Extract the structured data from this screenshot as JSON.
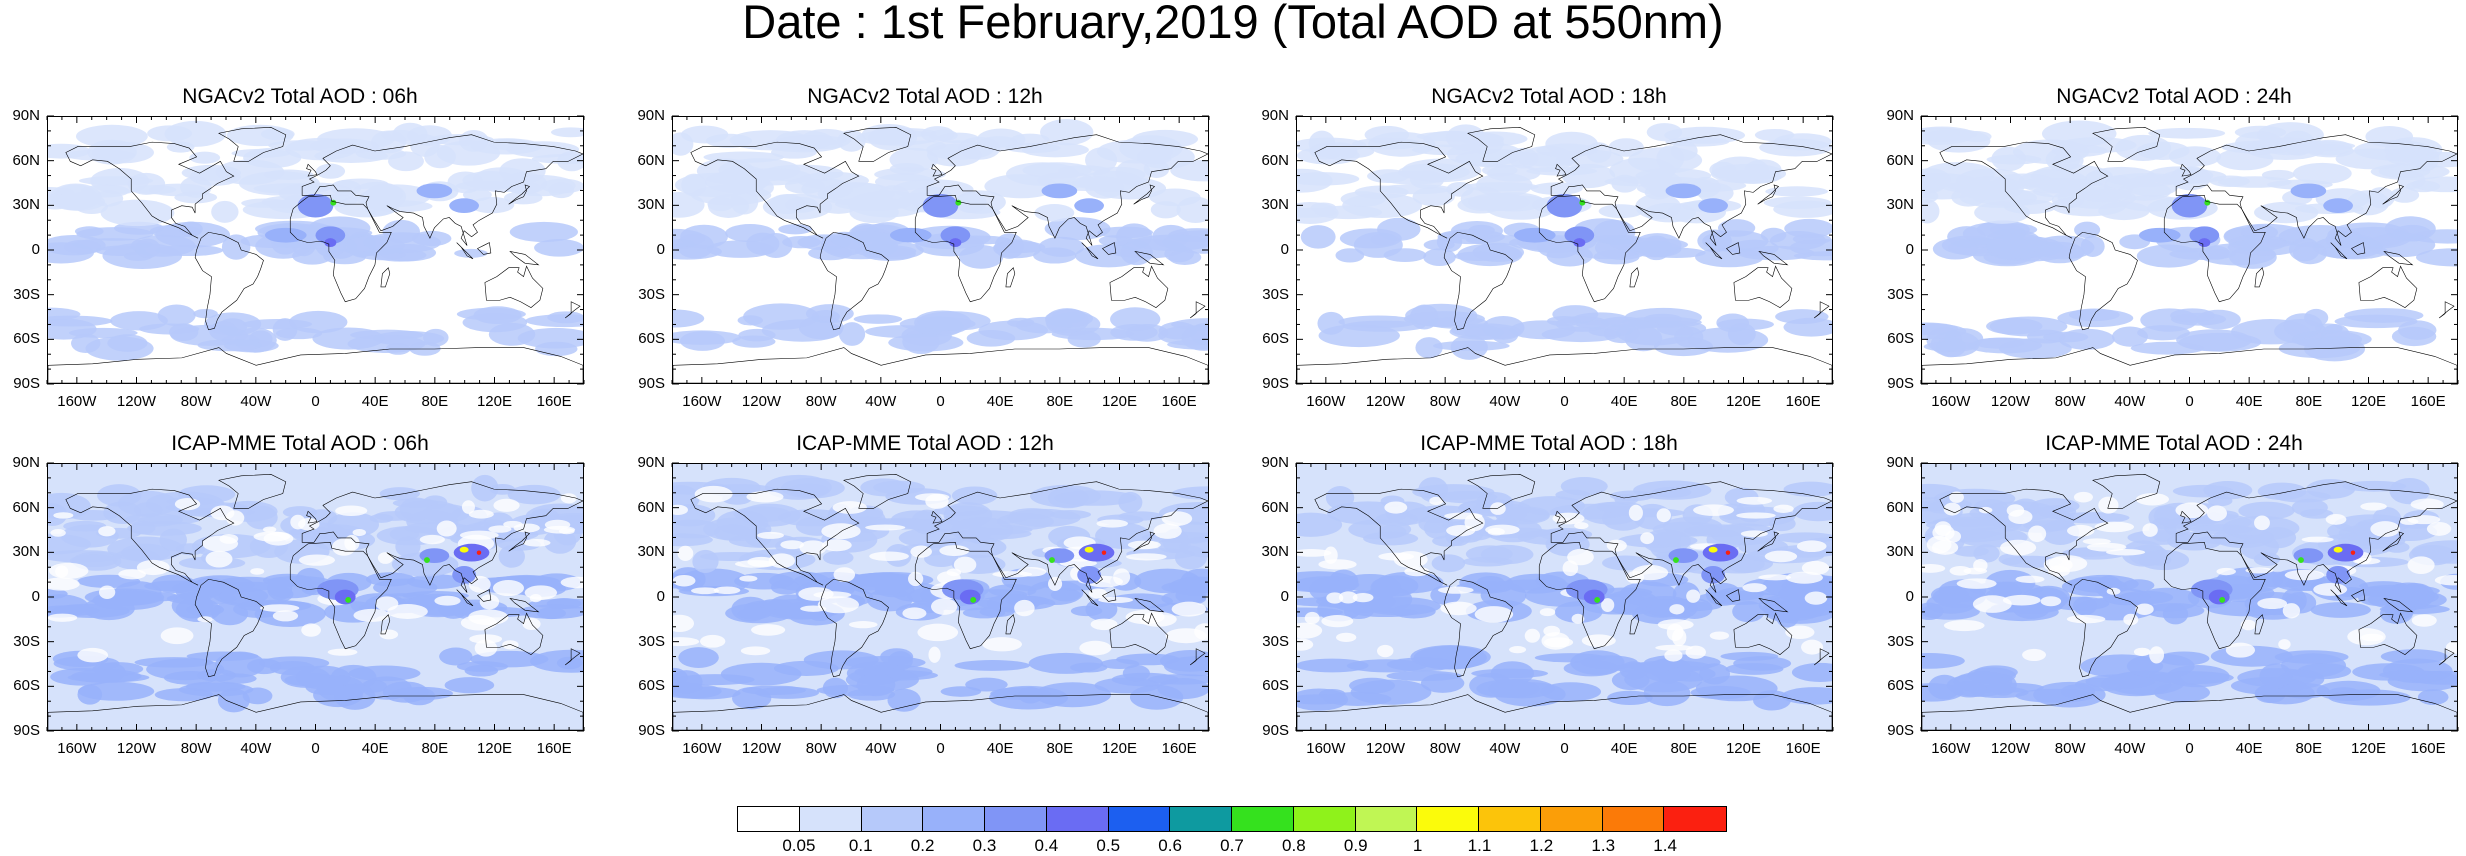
{
  "title": "Date : 1st February,2019 (Total AOD at 550nm)",
  "panels": [
    {
      "title": "NGACv2 Total AOD : 06h",
      "model": "NGACv2",
      "hour": "06h"
    },
    {
      "title": "NGACv2 Total AOD : 12h",
      "model": "NGACv2",
      "hour": "12h"
    },
    {
      "title": "NGACv2 Total AOD : 18h",
      "model": "NGACv2",
      "hour": "18h"
    },
    {
      "title": "NGACv2 Total AOD : 24h",
      "model": "NGACv2",
      "hour": "24h"
    },
    {
      "title": "ICAP-MME Total AOD : 06h",
      "model": "ICAP-MME",
      "hour": "06h"
    },
    {
      "title": "ICAP-MME Total AOD : 12h",
      "model": "ICAP-MME",
      "hour": "12h"
    },
    {
      "title": "ICAP-MME Total AOD : 18h",
      "model": "ICAP-MME",
      "hour": "18h"
    },
    {
      "title": "ICAP-MME Total AOD : 24h",
      "model": "ICAP-MME",
      "hour": "24h"
    }
  ],
  "lat_labels": [
    "90N",
    "60N",
    "30N",
    "0",
    "30S",
    "60S",
    "90S"
  ],
  "lon_labels": [
    "160W",
    "120W",
    "80W",
    "40W",
    "0",
    "40E",
    "80E",
    "120E",
    "160E"
  ],
  "colorbar": {
    "labels": [
      "0.05",
      "0.1",
      "0.2",
      "0.3",
      "0.4",
      "0.5",
      "0.6",
      "0.7",
      "0.8",
      "0.9",
      "1",
      "1.1",
      "1.2",
      "1.3",
      "1.4"
    ],
    "colors": [
      "#ffffff",
      "#d6e2fb",
      "#b6c9fa",
      "#98b1fa",
      "#8095f6",
      "#6a6cf3",
      "#1c5ff0",
      "#0e9aa0",
      "#35e11e",
      "#8ff21b",
      "#c0f654",
      "#fbfb0b",
      "#fcc40a",
      "#fb9e08",
      "#fb7a08",
      "#fb2010"
    ]
  },
  "colors": {
    "background": "#ffffff",
    "coast": "#000000",
    "low_aod": "#d6e2fb",
    "mid_aod": "#8095f6",
    "high_aod": "#fbfb0b"
  }
}
